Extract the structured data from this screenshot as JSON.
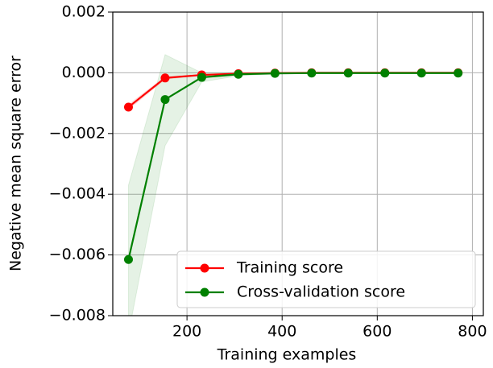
{
  "chart_data": {
    "type": "line",
    "xlabel": "Training examples",
    "ylabel": "Negative mean square error",
    "x": [
      77,
      154,
      231,
      308,
      385,
      462,
      539,
      616,
      693,
      770
    ],
    "series": [
      {
        "name": "Training score",
        "color": "#ff0000",
        "values": [
          -0.00113,
          -0.00017,
          -7e-05,
          -3e-05,
          -1e-05,
          0,
          0,
          0,
          0,
          0
        ],
        "band_lower": [
          -0.00121,
          -0.00021,
          -9e-05,
          -4e-05,
          -2e-05,
          -1e-05,
          -1e-05,
          -1e-05,
          -1e-05,
          -1e-05
        ],
        "band_upper": [
          -0.00105,
          -0.00013,
          -5e-05,
          -2e-05,
          0,
          0,
          0,
          0,
          0,
          0
        ]
      },
      {
        "name": "Cross-validation score",
        "color": "#008000",
        "values": [
          -0.00615,
          -0.00088,
          -0.00015,
          -5e-05,
          -2e-05,
          -1e-05,
          -1e-05,
          -1e-05,
          -1e-05,
          -1e-05
        ],
        "band_lower": [
          -0.0086,
          -0.0024,
          -0.0003,
          -0.0001,
          -4e-05,
          -2e-05,
          -2e-05,
          -2e-05,
          -2e-05,
          -2e-05
        ],
        "band_upper": [
          -0.0037,
          0.0006,
          0,
          0,
          0,
          0,
          0,
          0,
          0,
          0
        ]
      }
    ],
    "xlim": [
      44,
      823
    ],
    "ylim": [
      -0.008,
      0.002
    ],
    "xticks": [
      200,
      400,
      600,
      800
    ],
    "yticks": [
      {
        "value": -0.008,
        "label": "−0.008"
      },
      {
        "value": -0.006,
        "label": "−0.006"
      },
      {
        "value": -0.004,
        "label": "−0.004"
      },
      {
        "value": -0.002,
        "label": "−0.002"
      },
      {
        "value": 0,
        "label": "0.000"
      },
      {
        "value": 0.002,
        "label": "0.002"
      }
    ],
    "grid": true,
    "legend": "lower right"
  }
}
